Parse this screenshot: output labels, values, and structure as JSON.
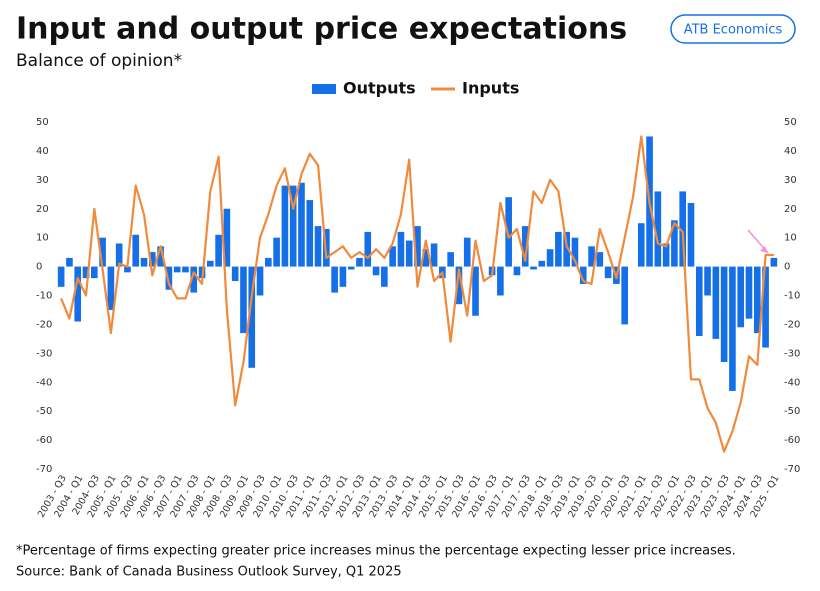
{
  "chart_data": {
    "type": "bar-line",
    "title": "Input and output price expectations",
    "subtitle": "Balance of opinion*",
    "brand": "ATB Economics",
    "footnote": "*Percentage of firms expecting greater price increases minus the percentage expecting lesser price increases.",
    "source": "Source: Bank of Canada Business Outlook Survey, Q1 2025",
    "categories": [
      "2003 - Q3",
      null,
      "2004 - Q1",
      null,
      "2004- Q3",
      null,
      "2005 - Q1",
      null,
      "2005 - Q3",
      null,
      "2006 - Q1",
      null,
      "2006 - Q3",
      null,
      "2007 - Q1",
      null,
      "2007 - Q3",
      null,
      "2008 - Q1",
      null,
      "2008 - Q3",
      null,
      "2009 - Q1",
      null,
      "2009 - Q3",
      null,
      "2010 - Q1",
      null,
      "2010 - Q3",
      null,
      "2011 - Q1",
      null,
      "2011 - Q3",
      null,
      "2012 - Q1",
      null,
      "2012 - Q3",
      null,
      "2013 - Q1",
      null,
      "2013 - Q3",
      null,
      "2014 - Q1",
      null,
      "2014 - Q3",
      null,
      "2015 - Q1",
      null,
      "2015 - Q3",
      null,
      "2016 - Q1",
      null,
      "2016 - Q3",
      null,
      "2017 - Q1",
      null,
      "2017 - Q3",
      null,
      "2018 - Q1",
      null,
      "2018 - Q3",
      null,
      "2019 - Q1",
      null,
      "2019 - Q3",
      null,
      "2020 - Q1",
      null,
      "2020 - Q3",
      null,
      "2021 - Q1",
      null,
      "2021 - Q3",
      null,
      "2022 - Q1",
      null,
      "2022 - Q3",
      null,
      "2023 - Q1",
      null,
      "2023 - Q3",
      null,
      "2024 - Q1",
      null,
      "2024 - Q3",
      null,
      "2025 - Q1"
    ],
    "series": [
      {
        "name": "Outputs",
        "color": "#1570e8",
        "kind": "bar",
        "values": [
          -7,
          3,
          -19,
          -4,
          -4,
          10,
          -15,
          8,
          -2,
          11,
          3,
          5,
          7,
          -8,
          -2,
          -2,
          -9,
          -4,
          2,
          11,
          20,
          -5,
          -23,
          -35,
          -10,
          3,
          10,
          28,
          28,
          29,
          23,
          14,
          13,
          -9,
          -7,
          -1,
          3,
          12,
          -3,
          -7,
          7,
          12,
          9,
          14,
          6,
          8,
          -4,
          5,
          -13,
          10,
          -17,
          0,
          -3,
          -10,
          24,
          -3,
          14,
          -1,
          2,
          6,
          12,
          12,
          10,
          -6,
          7,
          5,
          -4,
          -6,
          -20,
          0,
          15,
          45,
          26,
          8,
          16,
          26,
          22,
          -24,
          -10,
          -25,
          -33,
          -43,
          -21,
          -18,
          -23,
          -28,
          3
        ]
      },
      {
        "name": "Inputs",
        "color": "#f08a3c",
        "kind": "line",
        "values": [
          -11,
          -18,
          -4,
          -10,
          20,
          -1,
          -23,
          1,
          0,
          28,
          18,
          -3,
          7,
          -6,
          -11,
          -11,
          -2,
          -6,
          26,
          38,
          -15,
          -48,
          -33,
          -10,
          10,
          18,
          28,
          34,
          20,
          32,
          39,
          35,
          3,
          5,
          7,
          3,
          5,
          3,
          6,
          3,
          8,
          18,
          37,
          -7,
          9,
          -5,
          -2,
          -26,
          -1,
          -17,
          9,
          -5,
          -3,
          22,
          10,
          13,
          2,
          26,
          22,
          30,
          26,
          7,
          2,
          -5,
          -6,
          13,
          5,
          -4,
          10,
          24,
          45,
          22,
          8,
          7,
          15,
          12,
          -39,
          -39,
          -49,
          -54,
          -64,
          -57,
          -47,
          -31,
          -34,
          4,
          4
        ]
      }
    ],
    "ylim": [
      -70,
      50
    ],
    "yticks": [
      -70,
      -60,
      -50,
      -40,
      -30,
      -20,
      -10,
      0,
      10,
      20,
      30,
      40,
      50
    ],
    "y2lim": [
      -70,
      50
    ],
    "y2ticks": [
      -70,
      -60,
      -50,
      -40,
      -30,
      -20,
      -10,
      0,
      10,
      20,
      30,
      40,
      50
    ],
    "legend": "top"
  }
}
